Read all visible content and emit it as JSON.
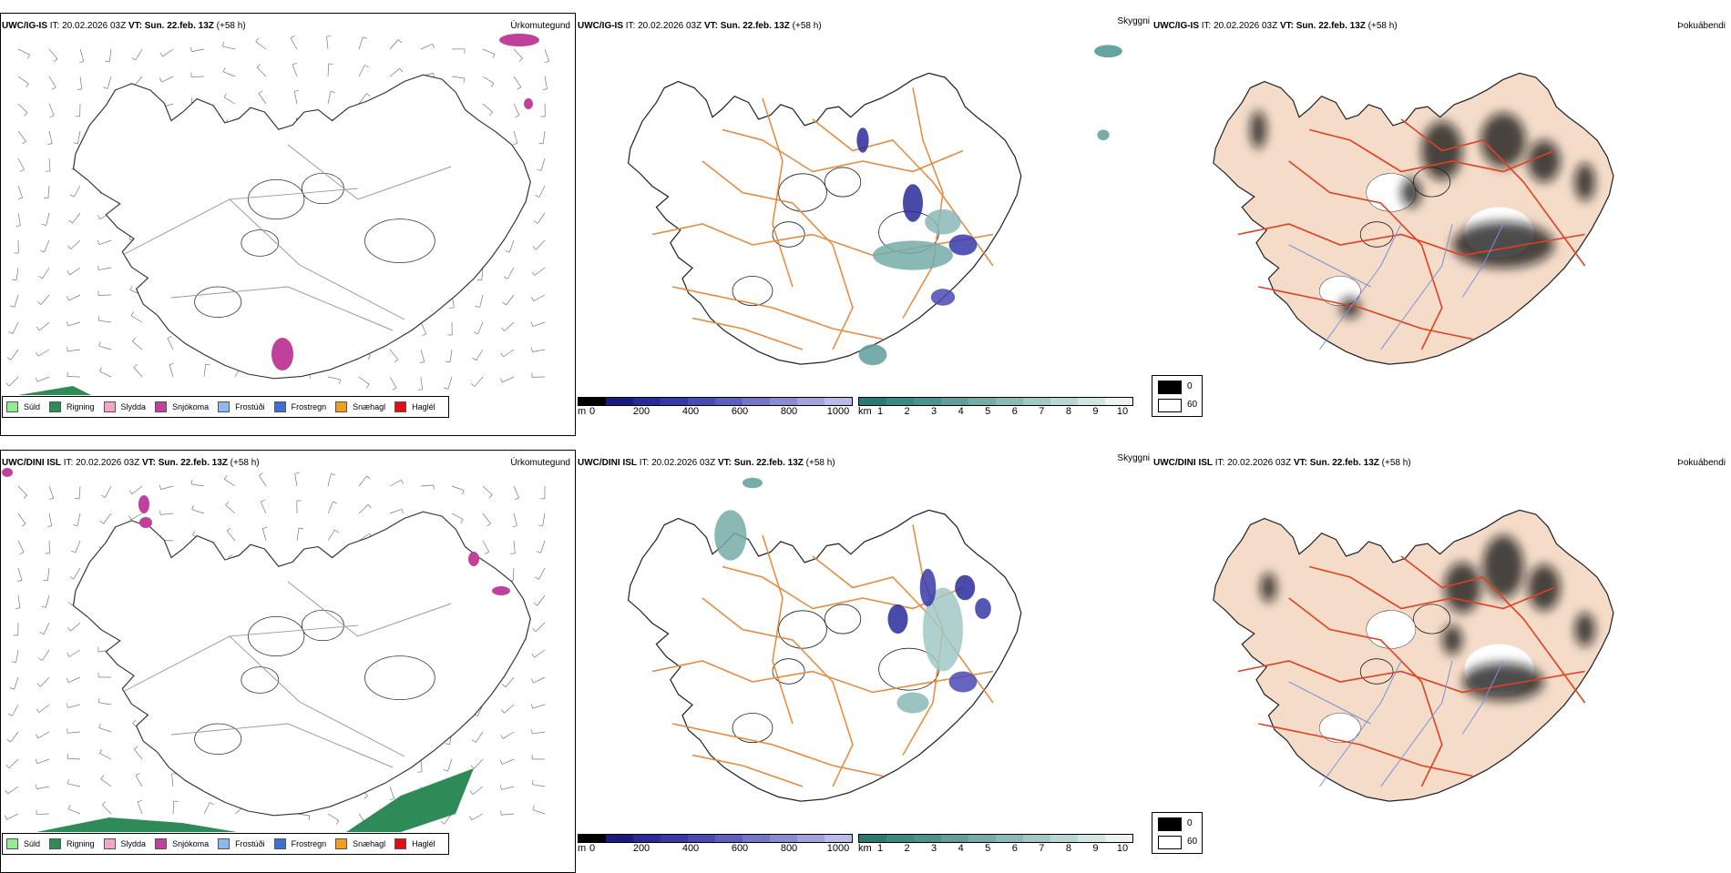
{
  "rows": [
    {
      "model": "UWC/IG-IS",
      "init_label": "IT:",
      "init_value": "20.02.2026 03Z",
      "valid_label": "VT:",
      "valid_value": "Sun. 22.feb. 13Z",
      "lead": "(+58 h)"
    },
    {
      "model": "UWC/DINI ISL",
      "init_label": "IT:",
      "init_value": "20.02.2026 03Z",
      "valid_label": "VT:",
      "valid_value": "Sun. 22.feb. 13Z",
      "lead": "(+58 h)"
    }
  ],
  "panel_titles": {
    "precip_type": "Úrkomutegund",
    "visibility": "Skyggni",
    "dewpoint": "Þokuábendi"
  },
  "precip_legend": [
    {
      "label": "Súld",
      "color": "#90ee90"
    },
    {
      "label": "Rigning",
      "color": "#2e8b57"
    },
    {
      "label": "Slydda",
      "color": "#f4a6c8"
    },
    {
      "label": "Snjókoma",
      "color": "#c0409a"
    },
    {
      "label": "Frostúði",
      "color": "#8fb8ee"
    },
    {
      "label": "Frostregn",
      "color": "#3b6fd0"
    },
    {
      "label": "Snæhagl",
      "color": "#f0a020"
    },
    {
      "label": "Haglél",
      "color": "#e01010"
    }
  ],
  "height_bar": {
    "unit": "m",
    "ticks": [
      "0",
      "200",
      "400",
      "600",
      "800",
      "1000"
    ],
    "colors": [
      "#000000",
      "#1a1a80",
      "#2a2a9a",
      "#3838aa",
      "#4a4ab5",
      "#5e5ec0",
      "#7474c8",
      "#8a8ad2",
      "#a2a2dc",
      "#babae6"
    ]
  },
  "vis_bar": {
    "unit": "km",
    "ticks": [
      "1",
      "2",
      "3",
      "4",
      "5",
      "6",
      "7",
      "8",
      "9",
      "10"
    ],
    "colors": [
      "#2a7a74",
      "#3a8a84",
      "#4a9490",
      "#5e9f9b",
      "#74aca8",
      "#8ab9b6",
      "#a2c8c5",
      "#bad6d4",
      "#d2e5e3",
      "#eaf3f2"
    ]
  },
  "fog_legend": [
    {
      "label": "0",
      "color": "#000000"
    },
    {
      "label": "60",
      "color": "#ffffff"
    }
  ],
  "colors": {
    "roads": "#e8883a",
    "land_fill": "#f4dcc9",
    "red_roads": "#e04020",
    "rivers": "#7a90e0",
    "coast": "#000000"
  }
}
